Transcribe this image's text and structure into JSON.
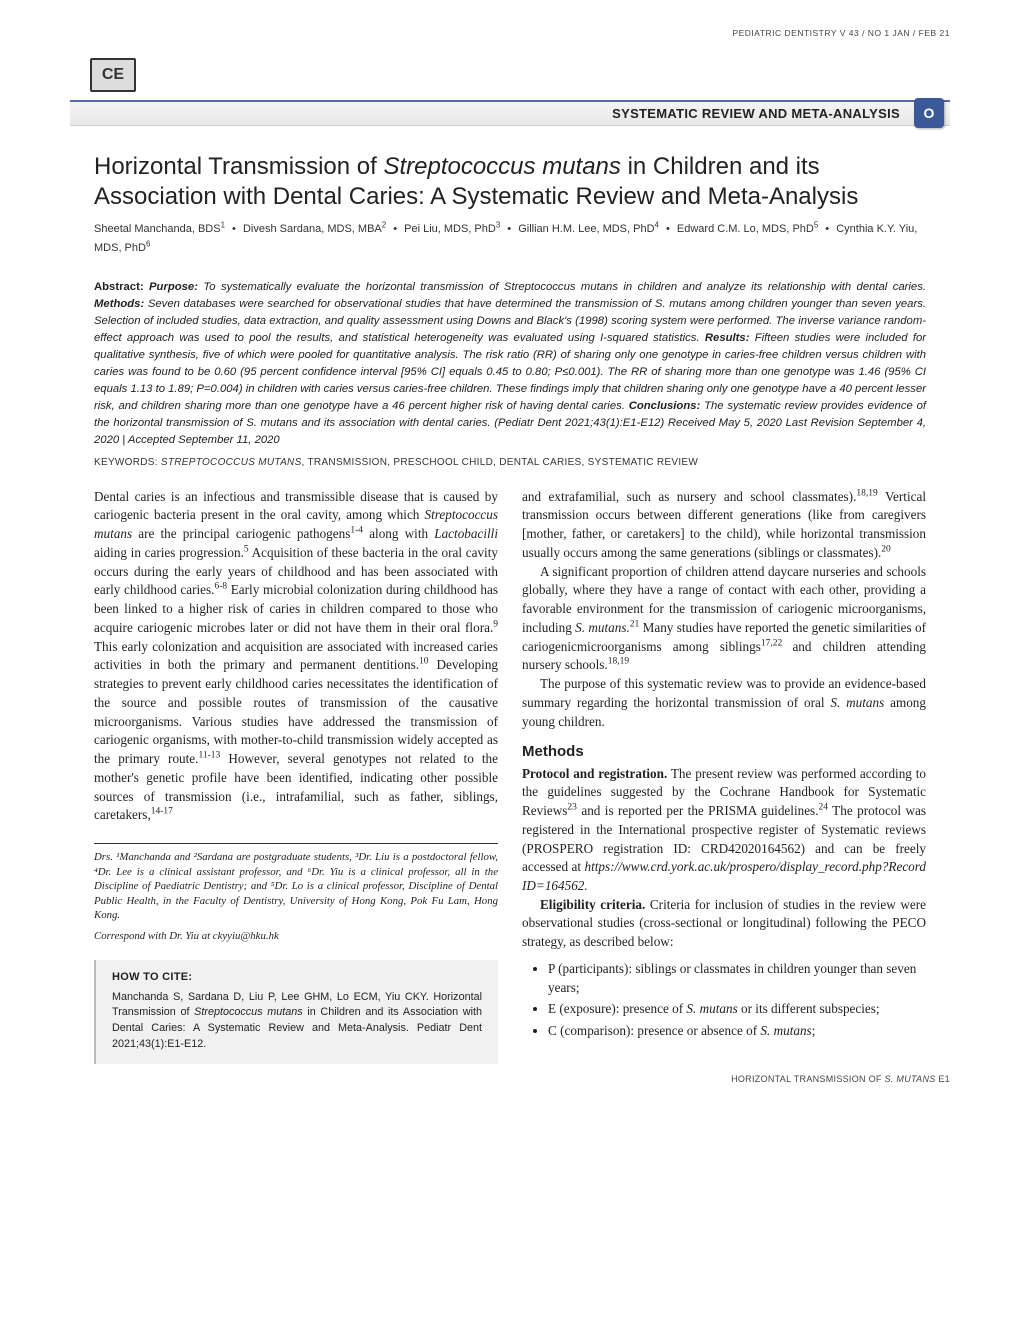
{
  "running_head": "PEDIATRIC DENTISTRY   V 43  /  NO 1   JAN  /  FEB   21",
  "ce_label": "CE",
  "section_bar": "SYSTEMATIC REVIEW AND META-ANALYSIS",
  "section_badge": "O",
  "title_pre": "Horizontal Transmission of ",
  "title_ital": "Streptococcus mutans",
  "title_post": " in Children and its Association with Dental Caries: A Systematic Review and Meta-Analysis",
  "authors": {
    "list": [
      {
        "name": "Sheetal Manchanda, BDS",
        "sup": "1"
      },
      {
        "name": "Divesh Sardana, MDS, MBA",
        "sup": "2"
      },
      {
        "name": "Pei Liu, MDS, PhD",
        "sup": "3"
      },
      {
        "name": "Gillian H.M. Lee, MDS, PhD",
        "sup": "4"
      },
      {
        "name": "Edward C.M. Lo, MDS, PhD",
        "sup": "5"
      },
      {
        "name": "Cynthia K.Y. Yiu, MDS, PhD",
        "sup": "6"
      }
    ]
  },
  "abstract": {
    "lbl_abstract": "Abstract:",
    "lbl_purpose": "Purpose:",
    "purpose": " To systematically evaluate the horizontal transmission of Streptococcus mutans in children and analyze its relationship with dental caries. ",
    "lbl_methods": "Methods:",
    "methods": " Seven databases were searched for observational studies that have determined the transmission of S. mutans among children younger than seven years. Selection of included studies, data extraction, and quality assessment using Downs and Black's (1998) scoring system were performed. The inverse variance random-effect approach was used to pool the results, and statistical heterogeneity was evaluated using I-squared statistics. ",
    "lbl_results": "Results:",
    "results": " Fifteen studies were included for qualitative synthesis, five of which were pooled for quantitative analysis. The risk ratio (RR) of sharing only one genotype in caries-free children versus children with caries was found to be 0.60 (95 percent confidence interval [95% CI] equals 0.45 to 0.80; P≤0.001). The RR of sharing more than one genotype was 1.46 (95% CI equals 1.13 to 1.89; P=0.004) in children with caries versus caries-free children. These findings imply that children sharing only one genotype have a 40 percent lesser risk, and children sharing more than one genotype have a 46 percent higher risk of having dental caries. ",
    "lbl_conclusions": "Conclusions:",
    "conclusions": " The systematic review provides evidence of the horizontal transmission of S. mutans and its association with dental caries.  (Pediatr Dent 2021;43(1):E1-E12)   Received May 5, 2020   Last Revision September 4, 2020   |   Accepted September 11, 2020"
  },
  "keywords": {
    "label": "KEYWORDS:  ",
    "ital": "STREPTOCOCCUS MUTANS",
    "rest": ", TRANSMISSION, PRESCHOOL CHILD, DENTAL CARIES, SYSTEMATIC REVIEW"
  },
  "col1": {
    "p1a": "Dental caries is an infectious and transmissible disease that is caused by cariogenic bacteria present in the oral cavity, among which ",
    "p1b": "Streptococcus mutans",
    "p1c": " are the principal cariogenic pathogens",
    "p1d": "1-4",
    "p1e": " along with ",
    "p1f": "Lactobacilli",
    "p1g": " aiding in caries progression.",
    "p1h": "5",
    "p1i": " Acquisition of these bacteria in the oral cavity occurs during the early years of childhood and has been associated with early childhood caries.",
    "p1j": "6-8",
    "p1k": " Early microbial colonization during childhood has been linked to a higher risk of caries in children compared to those who acquire cariogenic microbes later or did not have them in their oral flora.",
    "p1l": "9",
    "p1m": " This early colonization and acquisition are associated with increased caries activities in both the primary and permanent dentitions.",
    "p1n": "10",
    "p1o": " Developing strategies to prevent early childhood caries necessitates the identification of the source and possible routes of transmission of the causative microorganisms. Various studies have addressed the transmission of cariogenic organisms, with mother-to-child transmission widely accepted as the primary route.",
    "p1p": "11-13",
    "p1q": " However, several genotypes not related to the mother's genetic profile have been identified, indicating other possible sources of transmission (i.e., intrafamilial, such as father, siblings, caretakers,",
    "p1r": "14-17"
  },
  "affil": "Drs. ¹Manchanda and ²Sardana are postgraduate students, ³Dr. Liu is a postdoctoral fellow, ⁴Dr. Lee is a clinical assistant professor, and ⁶Dr. Yiu is a clinical professor, all in the Discipline of Paediatric Dentistry; and ⁵Dr. Lo is a clinical professor, Discipline of Dental Public Health, in the Faculty of Dentistry, University of Hong Kong, Pok Fu Lam, Hong Kong.",
  "correspond": "Correspond with Dr. Yiu at ckyyiu@hku.hk",
  "howto": {
    "title": "HOW TO CITE:",
    "text_a": "Manchanda S, Sardana D, Liu P, Lee GHM, Lo ECM, Yiu CKY. Horizontal Transmission of ",
    "text_b": "Streptococcus mutans",
    "text_c": " in Children and its Association with Dental Caries: A Systematic Review and Meta-Analysis. Pediatr Dent 2021;43(1):E1-E12."
  },
  "col2": {
    "p1a": "and extrafamilial, such as nursery and school classmates).",
    "p1b": "18,19",
    "p1c": " Vertical transmission occurs between different generations (like from caregivers [mother, father, or caretakers] to the child), while horizontal transmission usually occurs among the same generations (siblings or classmates).",
    "p1d": "20",
    "p2a": "A significant proportion of children attend daycare nurseries and schools globally, where they have a range of contact with each other, providing a favorable environment for the transmission of cariogenic microorganisms, including ",
    "p2b": "S. mutans.",
    "p2c": "21",
    "p2d": " Many studies have reported the genetic similarities of cariogenicmicroorganisms among siblings",
    "p2e": "17,22 ",
    "p2f": "and children attending nursery schools.",
    "p2g": "18,19",
    "p3a": "The purpose of this systematic review was to provide an evidence-based summary regarding the horizontal transmission of oral ",
    "p3b": "S. mutans",
    "p3c": " among young children.",
    "methods_h": "Methods",
    "m1lbl": "Protocol and registration.",
    "m1": " The present review was performed according to the guidelines suggested by the Cochrane Handbook for Systematic Reviews",
    "m1s": "23",
    "m1b": " and is reported per the PRISMA guidelines.",
    "m1s2": "24",
    "m1c": " The protocol was registered in the International prospective register of Systematic reviews (PROSPERO registration ID: CRD42020164562) and can be freely accessed at ",
    "m1d": "https://www.crd.york.ac.uk/prospero/display_record.php?Record ID=164562.",
    "m2lbl": "Eligibility criteria.",
    "m2": " Criteria for inclusion of studies in the review were observational studies (cross-sectional or longitudinal) following the PECO strategy, as described below:",
    "bullets": [
      {
        "pre": "P (participants): siblings or classmates in children younger than seven years;"
      },
      {
        "pre": "E (exposure): presence of ",
        "ital": "S. mutans",
        "post": " or its different subspecies;"
      },
      {
        "pre": "C (comparison): presence or absence of ",
        "ital": "S. mutans",
        "post": ";"
      }
    ]
  },
  "footer": {
    "a": "HORIZONTAL TRANSMISSION OF ",
    "b": "S. MUTANS",
    "c": "     E1"
  }
}
